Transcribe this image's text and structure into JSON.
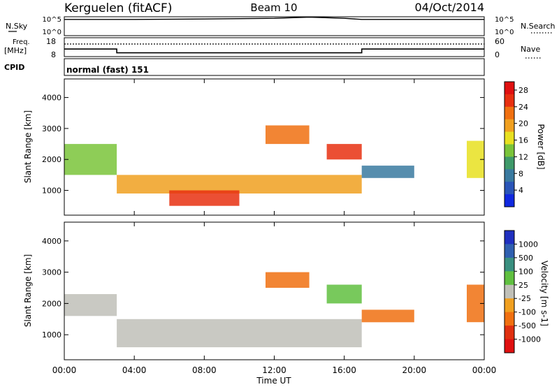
{
  "header": {
    "station": "Kerguelen (fitACF)",
    "beam": "Beam 10",
    "date": "04/Oct/2014"
  },
  "noise_panel": {
    "left_label": "N.Sky",
    "right_label": "N.Search",
    "left_ticks": [
      "10^5",
      "10^0"
    ],
    "right_ticks": [
      "10^5",
      "10^0"
    ]
  },
  "freq_panel": {
    "left_label_line1": "Freq.",
    "left_label_line2": "[MHz]",
    "right_label": "Nave",
    "left_ticks": [
      "18",
      "8"
    ],
    "right_ticks": [
      "60",
      "0"
    ]
  },
  "cpid_panel": {
    "label": "CPID",
    "text": "normal (fast) 151"
  },
  "x_axis": {
    "label": "Time UT",
    "ticks": [
      "00:00",
      "04:00",
      "08:00",
      "12:00",
      "16:00",
      "20:00",
      "00:00"
    ]
  },
  "colors": {
    "power_scale": [
      "#1028e0",
      "#2a55b8",
      "#3a7aa0",
      "#3f9a6a",
      "#7ac43a",
      "#e8e020",
      "#f0a020",
      "#f07010",
      "#e83010",
      "#e01010"
    ],
    "velocity_scale": [
      "#2030c0",
      "#3060b0",
      "#3a9080",
      "#60c040",
      "#c0c0b8",
      "#f0a020",
      "#f07010",
      "#e03010",
      "#e01010"
    ],
    "ground_scatter": "#c0c0b8"
  },
  "chart_data": [
    {
      "type": "line",
      "title": "N.Sky / N.Search",
      "x": [
        "00:00",
        "04:00",
        "08:00",
        "12:00",
        "14:00",
        "16:00",
        "17:00",
        "20:00",
        "24:00"
      ],
      "series": [
        {
          "name": "N.Sky",
          "values": [
            4.3,
            4.3,
            4.4,
            4.6,
            4.9,
            4.6,
            4.3,
            4.3,
            4.3
          ]
        },
        {
          "name": "N.Search",
          "values": [
            4.3,
            4.3,
            4.3,
            4.3,
            4.3,
            4.3,
            4.3,
            4.3,
            4.3
          ]
        }
      ],
      "ylim_left": [
        0,
        5
      ],
      "ylim_right": [
        0,
        5
      ]
    },
    {
      "type": "line",
      "title": "Freq. [MHz] / Nave",
      "x": [
        "00:00",
        "03:00",
        "03:00",
        "17:00",
        "17:00",
        "24:00"
      ],
      "series": [
        {
          "name": "Freq.",
          "values": [
            12,
            12,
            10,
            10,
            12,
            12
          ]
        },
        {
          "name": "Nave",
          "values": [
            40,
            40,
            40,
            40,
            40,
            40
          ]
        }
      ],
      "ylim_left": [
        8,
        18
      ],
      "ylim_right": [
        0,
        60
      ]
    },
    {
      "type": "heatmap",
      "title": "Power",
      "xlabel": "Time UT",
      "ylabel": "Slant Range [km]",
      "xlim_hours": [
        0,
        24
      ],
      "ylim": [
        200,
        4600
      ],
      "yticks": [
        1000,
        2000,
        3000,
        4000
      ],
      "colorbar": {
        "label": "Power [dB]",
        "ticks": [
          "4",
          "8",
          "12",
          "16",
          "20",
          "24",
          "28"
        ],
        "range": [
          0,
          30
        ]
      },
      "regions": [
        {
          "t0": 0.0,
          "t1": 3.0,
          "r0": 1500,
          "r1": 2500,
          "value": 14
        },
        {
          "t0": 3.0,
          "t1": 17.0,
          "r0": 900,
          "r1": 1500,
          "value": 20
        },
        {
          "t0": 6.0,
          "t1": 10.0,
          "r0": 500,
          "r1": 1000,
          "value": 26
        },
        {
          "t0": 11.5,
          "t1": 14.0,
          "r0": 2500,
          "r1": 3100,
          "value": 22
        },
        {
          "t0": 15.0,
          "t1": 17.0,
          "r0": 2000,
          "r1": 2500,
          "value": 26
        },
        {
          "t0": 17.0,
          "t1": 20.0,
          "r0": 1400,
          "r1": 1800,
          "value": 8
        },
        {
          "t0": 23.0,
          "t1": 24.0,
          "r0": 1400,
          "r1": 2600,
          "value": 16
        }
      ]
    },
    {
      "type": "heatmap",
      "title": "Velocity",
      "xlabel": "Time UT",
      "ylabel": "Slant Range [km]",
      "xlim_hours": [
        0,
        24
      ],
      "ylim": [
        200,
        4600
      ],
      "yticks": [
        1000,
        2000,
        3000,
        4000
      ],
      "colorbar": {
        "label": "Velocity [m s-1]",
        "ticks": [
          "1000",
          "500",
          "100",
          "25",
          "-25",
          "-100",
          "-500",
          "-1000"
        ]
      },
      "regions": [
        {
          "t0": 0.0,
          "t1": 3.0,
          "r0": 1600,
          "r1": 2300,
          "value": 0
        },
        {
          "t0": 3.0,
          "t1": 17.0,
          "r0": 600,
          "r1": 1500,
          "value": 0
        },
        {
          "t0": 11.5,
          "t1": 14.0,
          "r0": 2500,
          "r1": 3000,
          "value": -150
        },
        {
          "t0": 15.0,
          "t1": 17.0,
          "r0": 2000,
          "r1": 2600,
          "value": 80
        },
        {
          "t0": 17.0,
          "t1": 20.0,
          "r0": 1400,
          "r1": 1800,
          "value": -300
        },
        {
          "t0": 23.0,
          "t1": 24.0,
          "r0": 1400,
          "r1": 2600,
          "value": -400
        }
      ]
    }
  ]
}
